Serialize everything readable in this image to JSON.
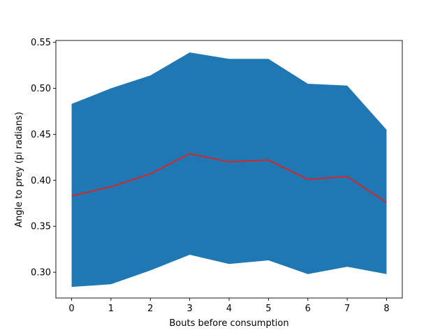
{
  "chart_data": {
    "type": "line",
    "title": "",
    "xlabel": "Bouts before consumption",
    "ylabel": "Angle to prey (pi radians)",
    "x": [
      0,
      1,
      2,
      3,
      4,
      5,
      6,
      7,
      8
    ],
    "xlim": [
      -0.4,
      8.4
    ],
    "ylim": [
      0.272,
      0.552
    ],
    "xticks": [
      0,
      1,
      2,
      3,
      4,
      5,
      6,
      7,
      8
    ],
    "xtick_labels": [
      "0",
      "1",
      "2",
      "3",
      "4",
      "5",
      "6",
      "7",
      "8"
    ],
    "yticks": [
      0.3,
      0.35,
      0.4,
      0.45,
      0.5,
      0.55
    ],
    "ytick_labels": [
      "0.30",
      "0.35",
      "0.40",
      "0.45",
      "0.50",
      "0.55"
    ],
    "grid": false,
    "series": [
      {
        "kind": "band",
        "lower": [
          0.284,
          0.287,
          0.302,
          0.319,
          0.309,
          0.313,
          0.298,
          0.306,
          0.298
        ],
        "upper": [
          0.483,
          0.5,
          0.514,
          0.539,
          0.532,
          0.532,
          0.505,
          0.503,
          0.455
        ],
        "color": "#1f77b4"
      },
      {
        "kind": "line",
        "values": [
          0.383,
          0.393,
          0.407,
          0.429,
          0.42,
          0.422,
          0.401,
          0.404,
          0.376
        ],
        "color": "#d62728"
      }
    ]
  }
}
